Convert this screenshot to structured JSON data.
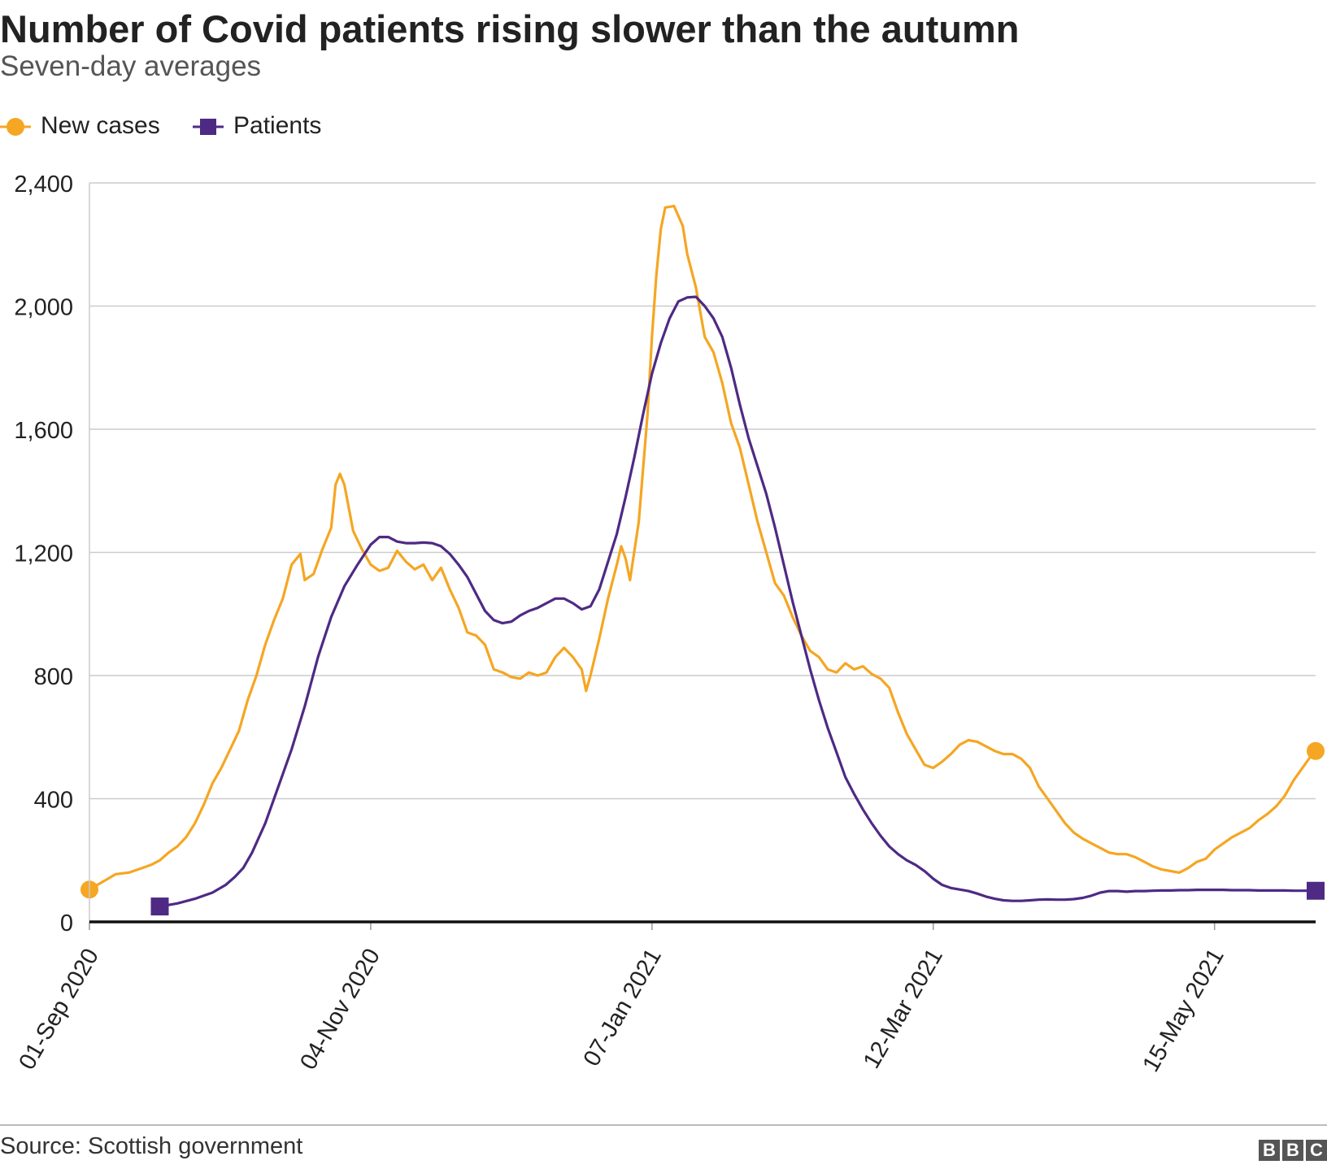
{
  "title": "Number of Covid patients rising slower than the autumn",
  "subtitle": "Seven-day averages",
  "source": "Source: Scottish government",
  "logo_letters": [
    "B",
    "B",
    "C"
  ],
  "colors": {
    "new_cases": "#f5a623",
    "patients": "#4e2a84",
    "grid": "#cccccc",
    "axis": "#111111"
  },
  "chart_data": {
    "type": "line",
    "title": "Number of Covid patients rising slower than the autumn",
    "subtitle": "Seven-day averages",
    "x_unit": "days since 01-Sep 2020",
    "x_range": [
      0,
      279
    ],
    "ylim": [
      0,
      2400
    ],
    "yticks": [
      0,
      400,
      800,
      1200,
      1600,
      2000,
      2400
    ],
    "ytick_labels": [
      "0",
      "400",
      "800",
      "1,200",
      "1,600",
      "2,000",
      "2,400"
    ],
    "xticks": [
      0,
      64,
      128,
      192,
      256
    ],
    "xtick_labels": [
      "01-Sep 2020",
      "04-Nov 2020",
      "07-Jan 2021",
      "12-Mar 2021",
      "15-May 2021"
    ],
    "grid": true,
    "legend_position": "top-left",
    "series": [
      {
        "name": "New cases",
        "marker": "circle",
        "points": [
          [
            0,
            105
          ],
          [
            3,
            130
          ],
          [
            6,
            155
          ],
          [
            9,
            160
          ],
          [
            12,
            175
          ],
          [
            14,
            185
          ],
          [
            16,
            200
          ],
          [
            18,
            225
          ],
          [
            20,
            245
          ],
          [
            22,
            275
          ],
          [
            24,
            320
          ],
          [
            26,
            380
          ],
          [
            28,
            450
          ],
          [
            30,
            500
          ],
          [
            32,
            560
          ],
          [
            34,
            620
          ],
          [
            36,
            720
          ],
          [
            38,
            800
          ],
          [
            40,
            900
          ],
          [
            42,
            980
          ],
          [
            44,
            1050
          ],
          [
            46,
            1160
          ],
          [
            48,
            1195
          ],
          [
            49,
            1110
          ],
          [
            51,
            1130
          ],
          [
            53,
            1210
          ],
          [
            55,
            1280
          ],
          [
            56,
            1420
          ],
          [
            57,
            1455
          ],
          [
            58,
            1420
          ],
          [
            60,
            1270
          ],
          [
            62,
            1210
          ],
          [
            64,
            1160
          ],
          [
            66,
            1140
          ],
          [
            68,
            1150
          ],
          [
            70,
            1205
          ],
          [
            72,
            1170
          ],
          [
            74,
            1145
          ],
          [
            76,
            1160
          ],
          [
            78,
            1110
          ],
          [
            80,
            1150
          ],
          [
            82,
            1080
          ],
          [
            84,
            1020
          ],
          [
            86,
            940
          ],
          [
            88,
            930
          ],
          [
            90,
            900
          ],
          [
            92,
            820
          ],
          [
            94,
            810
          ],
          [
            96,
            795
          ],
          [
            98,
            790
          ],
          [
            100,
            810
          ],
          [
            102,
            800
          ],
          [
            104,
            810
          ],
          [
            106,
            860
          ],
          [
            108,
            890
          ],
          [
            110,
            860
          ],
          [
            112,
            820
          ],
          [
            113,
            750
          ],
          [
            114,
            800
          ],
          [
            116,
            920
          ],
          [
            118,
            1050
          ],
          [
            120,
            1160
          ],
          [
            121,
            1220
          ],
          [
            122,
            1180
          ],
          [
            123,
            1110
          ],
          [
            125,
            1300
          ],
          [
            127,
            1650
          ],
          [
            128,
            1900
          ],
          [
            129,
            2100
          ],
          [
            130,
            2250
          ],
          [
            131,
            2320
          ],
          [
            133,
            2325
          ],
          [
            135,
            2260
          ],
          [
            136,
            2170
          ],
          [
            138,
            2060
          ],
          [
            140,
            1900
          ],
          [
            142,
            1850
          ],
          [
            144,
            1750
          ],
          [
            146,
            1620
          ],
          [
            148,
            1540
          ],
          [
            150,
            1420
          ],
          [
            152,
            1300
          ],
          [
            154,
            1200
          ],
          [
            156,
            1100
          ],
          [
            158,
            1060
          ],
          [
            160,
            990
          ],
          [
            162,
            930
          ],
          [
            164,
            880
          ],
          [
            166,
            860
          ],
          [
            168,
            820
          ],
          [
            170,
            810
          ],
          [
            172,
            840
          ],
          [
            174,
            820
          ],
          [
            176,
            830
          ],
          [
            178,
            805
          ],
          [
            180,
            790
          ],
          [
            182,
            760
          ],
          [
            184,
            680
          ],
          [
            186,
            610
          ],
          [
            188,
            560
          ],
          [
            190,
            510
          ],
          [
            192,
            500
          ],
          [
            194,
            520
          ],
          [
            196,
            545
          ],
          [
            198,
            575
          ],
          [
            200,
            590
          ],
          [
            202,
            585
          ],
          [
            204,
            570
          ],
          [
            206,
            555
          ],
          [
            208,
            545
          ],
          [
            210,
            545
          ],
          [
            212,
            530
          ],
          [
            214,
            500
          ],
          [
            216,
            440
          ],
          [
            218,
            400
          ],
          [
            220,
            360
          ],
          [
            222,
            320
          ],
          [
            224,
            290
          ],
          [
            226,
            270
          ],
          [
            228,
            255
          ],
          [
            230,
            240
          ],
          [
            232,
            225
          ],
          [
            234,
            220
          ],
          [
            236,
            220
          ],
          [
            238,
            210
          ],
          [
            240,
            195
          ],
          [
            242,
            180
          ],
          [
            244,
            170
          ],
          [
            246,
            165
          ],
          [
            248,
            160
          ],
          [
            250,
            175
          ],
          [
            252,
            195
          ],
          [
            254,
            205
          ],
          [
            256,
            235
          ],
          [
            258,
            255
          ],
          [
            260,
            275
          ],
          [
            262,
            290
          ],
          [
            264,
            305
          ],
          [
            266,
            330
          ],
          [
            268,
            350
          ],
          [
            270,
            375
          ],
          [
            272,
            410
          ],
          [
            274,
            460
          ],
          [
            276,
            500
          ],
          [
            278,
            540
          ],
          [
            279,
            555
          ]
        ]
      },
      {
        "name": "Patients",
        "marker": "square",
        "points": [
          [
            16,
            50
          ],
          [
            20,
            60
          ],
          [
            24,
            75
          ],
          [
            28,
            95
          ],
          [
            31,
            120
          ],
          [
            33,
            145
          ],
          [
            35,
            175
          ],
          [
            37,
            225
          ],
          [
            40,
            320
          ],
          [
            43,
            440
          ],
          [
            46,
            560
          ],
          [
            49,
            700
          ],
          [
            52,
            860
          ],
          [
            55,
            990
          ],
          [
            58,
            1090
          ],
          [
            61,
            1160
          ],
          [
            64,
            1225
          ],
          [
            66,
            1250
          ],
          [
            68,
            1250
          ],
          [
            70,
            1235
          ],
          [
            72,
            1230
          ],
          [
            74,
            1230
          ],
          [
            76,
            1232
          ],
          [
            78,
            1230
          ],
          [
            80,
            1220
          ],
          [
            82,
            1195
          ],
          [
            84,
            1160
          ],
          [
            86,
            1120
          ],
          [
            88,
            1065
          ],
          [
            90,
            1010
          ],
          [
            92,
            980
          ],
          [
            94,
            970
          ],
          [
            96,
            975
          ],
          [
            98,
            995
          ],
          [
            100,
            1010
          ],
          [
            102,
            1020
          ],
          [
            104,
            1035
          ],
          [
            106,
            1050
          ],
          [
            108,
            1050
          ],
          [
            110,
            1035
          ],
          [
            112,
            1015
          ],
          [
            114,
            1025
          ],
          [
            116,
            1080
          ],
          [
            118,
            1170
          ],
          [
            120,
            1260
          ],
          [
            122,
            1380
          ],
          [
            124,
            1510
          ],
          [
            126,
            1650
          ],
          [
            128,
            1780
          ],
          [
            130,
            1880
          ],
          [
            132,
            1960
          ],
          [
            134,
            2015
          ],
          [
            136,
            2028
          ],
          [
            138,
            2030
          ],
          [
            140,
            2000
          ],
          [
            142,
            1960
          ],
          [
            144,
            1900
          ],
          [
            146,
            1800
          ],
          [
            148,
            1680
          ],
          [
            150,
            1570
          ],
          [
            152,
            1480
          ],
          [
            154,
            1390
          ],
          [
            156,
            1280
          ],
          [
            158,
            1160
          ],
          [
            160,
            1040
          ],
          [
            162,
            930
          ],
          [
            164,
            820
          ],
          [
            166,
            720
          ],
          [
            168,
            630
          ],
          [
            170,
            550
          ],
          [
            172,
            470
          ],
          [
            174,
            415
          ],
          [
            176,
            365
          ],
          [
            178,
            320
          ],
          [
            180,
            280
          ],
          [
            182,
            245
          ],
          [
            184,
            220
          ],
          [
            186,
            200
          ],
          [
            188,
            185
          ],
          [
            190,
            165
          ],
          [
            192,
            140
          ],
          [
            194,
            120
          ],
          [
            196,
            110
          ],
          [
            198,
            105
          ],
          [
            200,
            100
          ],
          [
            202,
            92
          ],
          [
            204,
            82
          ],
          [
            206,
            75
          ],
          [
            208,
            70
          ],
          [
            210,
            68
          ],
          [
            212,
            68
          ],
          [
            214,
            70
          ],
          [
            216,
            72
          ],
          [
            218,
            73
          ],
          [
            220,
            72
          ],
          [
            222,
            72
          ],
          [
            224,
            74
          ],
          [
            226,
            78
          ],
          [
            228,
            85
          ],
          [
            230,
            95
          ],
          [
            232,
            100
          ],
          [
            234,
            100
          ],
          [
            236,
            98
          ],
          [
            238,
            100
          ],
          [
            240,
            100
          ],
          [
            242,
            101
          ],
          [
            244,
            102
          ],
          [
            246,
            102
          ],
          [
            248,
            103
          ],
          [
            250,
            103
          ],
          [
            252,
            104
          ],
          [
            254,
            104
          ],
          [
            256,
            104
          ],
          [
            258,
            104
          ],
          [
            260,
            103
          ],
          [
            262,
            103
          ],
          [
            264,
            103
          ],
          [
            266,
            102
          ],
          [
            268,
            102
          ],
          [
            270,
            102
          ],
          [
            272,
            102
          ],
          [
            274,
            101
          ],
          [
            276,
            101
          ],
          [
            278,
            101
          ],
          [
            279,
            101
          ]
        ]
      }
    ]
  }
}
